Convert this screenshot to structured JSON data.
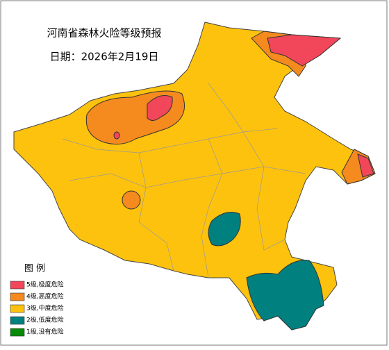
{
  "title": "河南省森林火险等级预报",
  "date": "日期：2026年2月19日",
  "legend": {
    "title": "图 例",
    "items": [
      {
        "label": "5级,极度危险",
        "color": "#f2465a"
      },
      {
        "label": "4级,高度危险",
        "color": "#f58a1f"
      },
      {
        "label": "3级,中度危险",
        "color": "#fdc20e"
      },
      {
        "label": "2级,低度危险",
        "color": "#00807f"
      },
      {
        "label": "1级,没有危险",
        "color": "#078a07"
      }
    ]
  }
}
